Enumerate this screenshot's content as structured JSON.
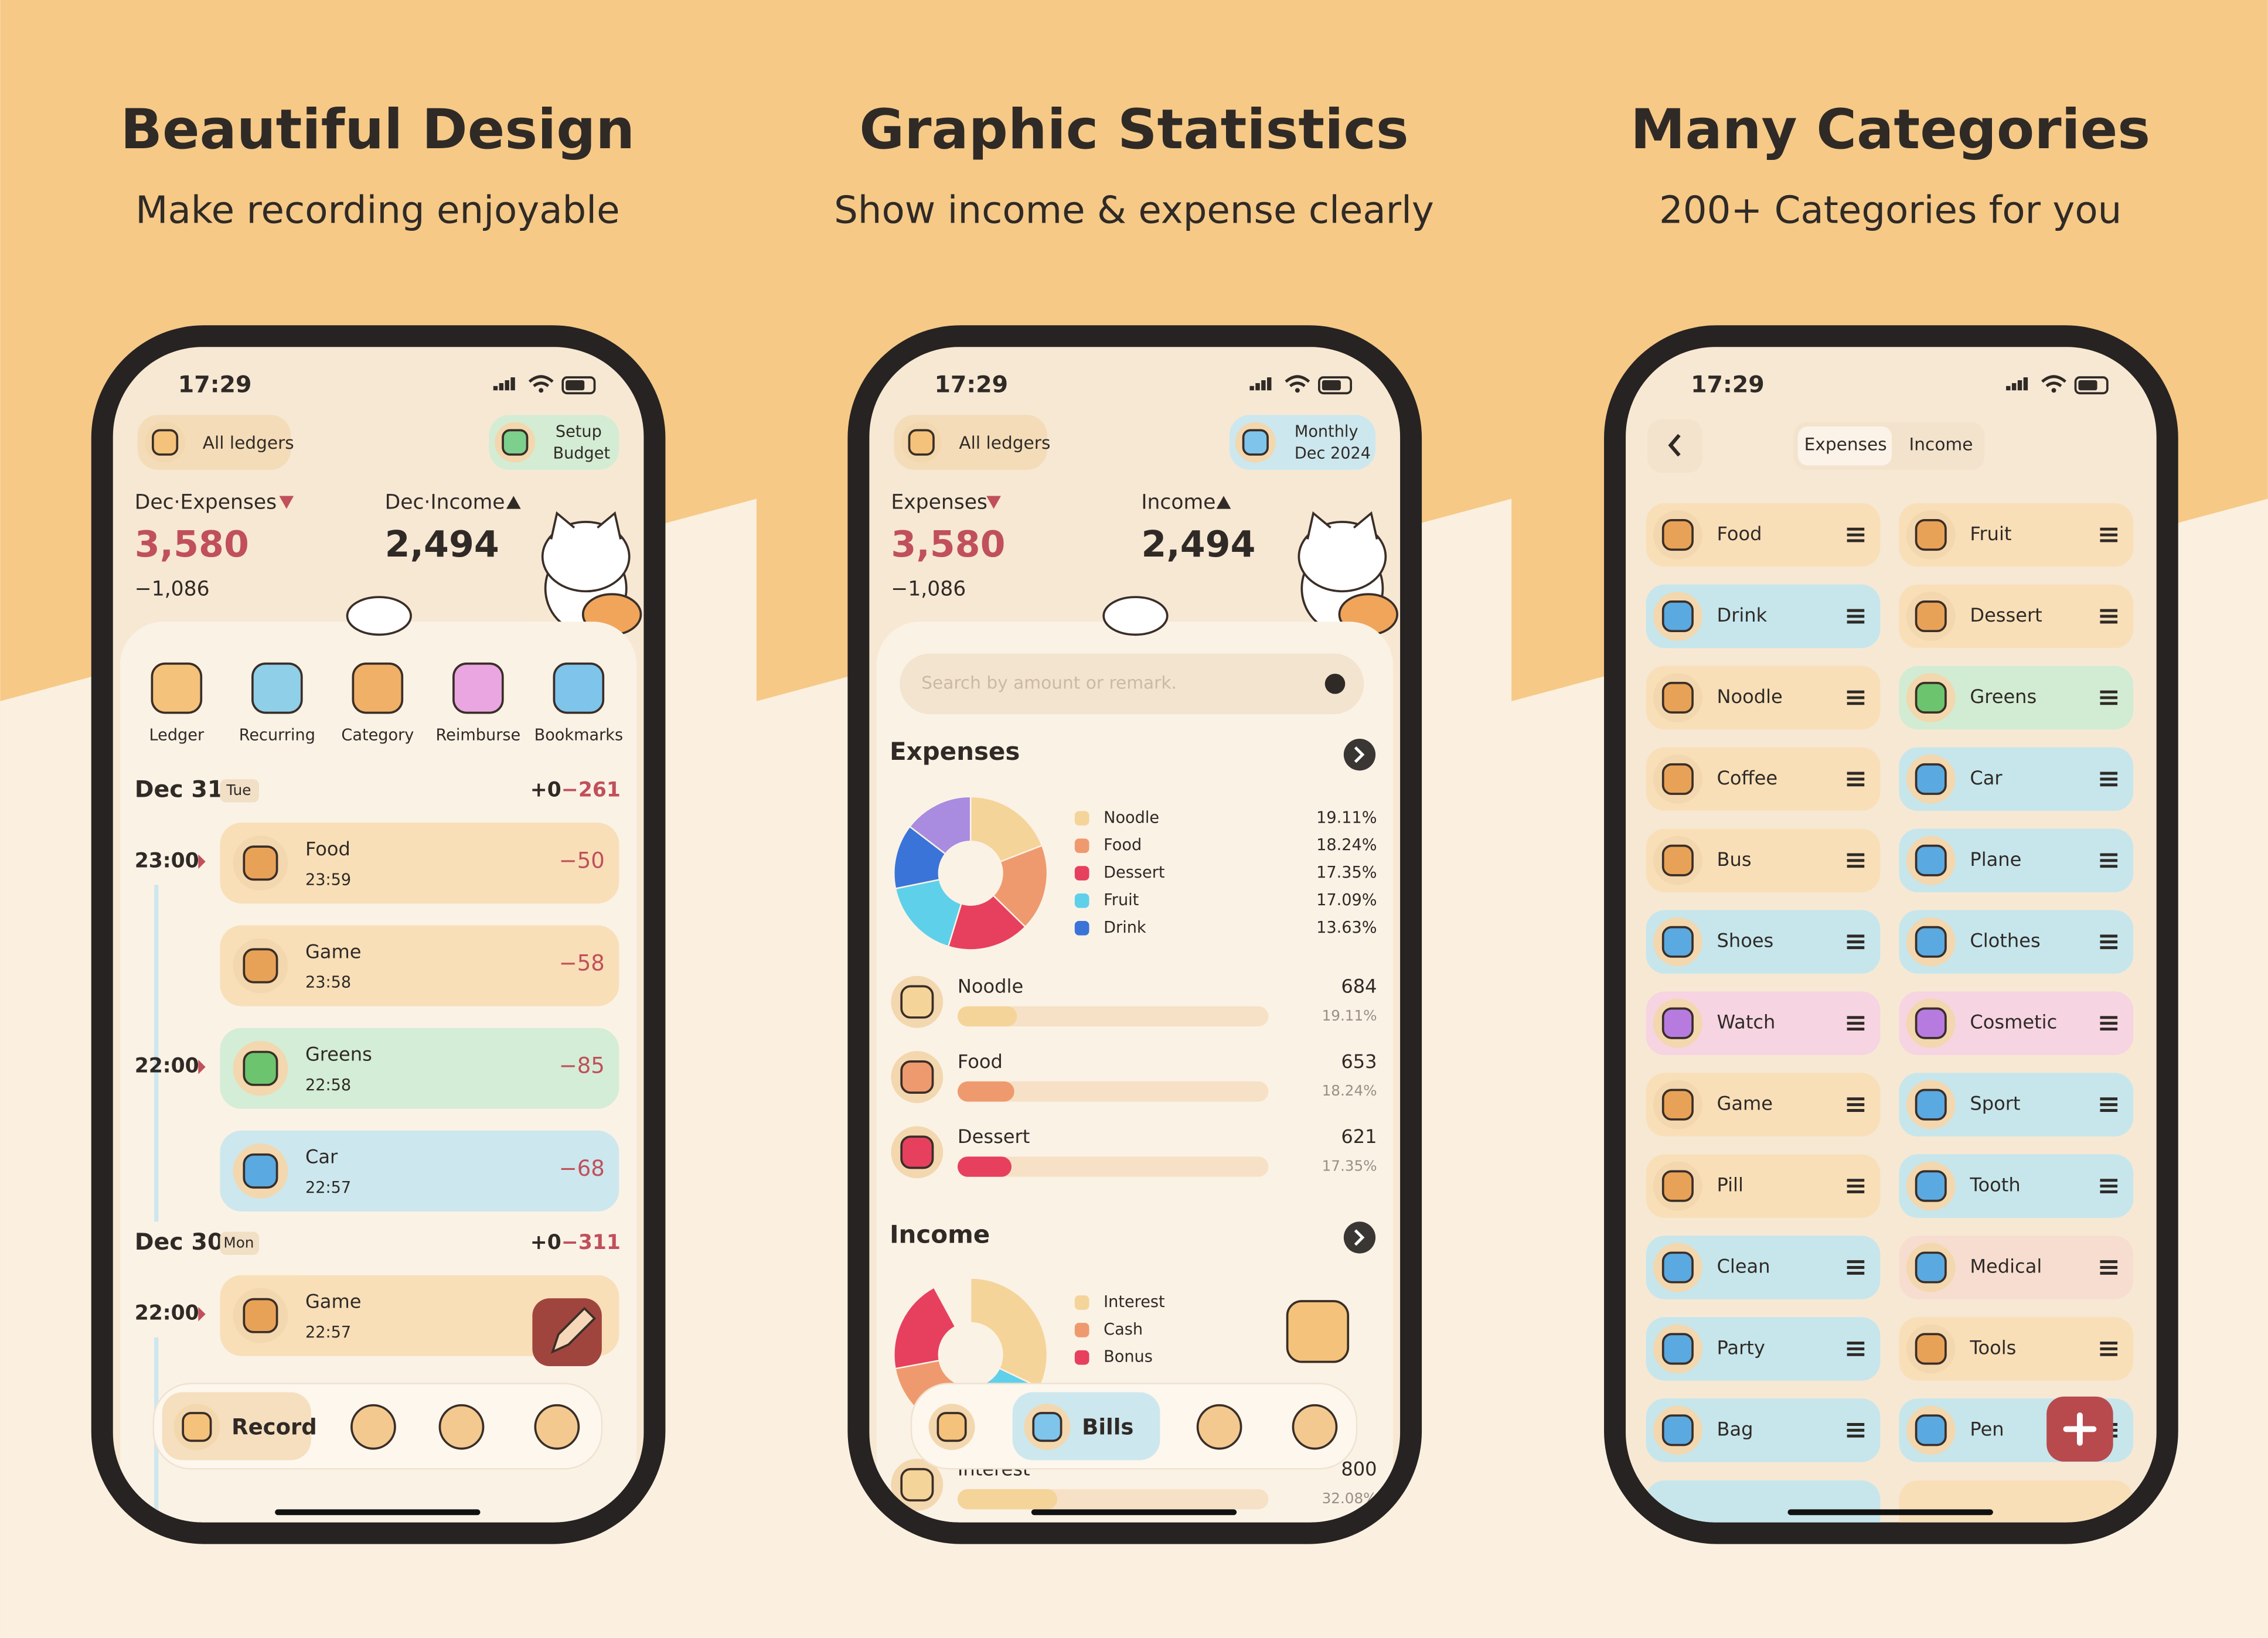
{
  "panels": [
    {
      "title": "Beautiful Design",
      "subtitle": "Make recording enjoyable"
    },
    {
      "title": "Graphic Statistics",
      "subtitle": "Show income & expense clearly"
    },
    {
      "title": "Many Categories",
      "subtitle": "200+ Categories for you"
    }
  ],
  "home": {
    "time": "17:29",
    "ledger": "All ledgers",
    "budget": [
      "Setup",
      "Budget"
    ],
    "expense_label": "Dec·Expenses",
    "expense": "3,580",
    "balance": "−1,086",
    "income_label": "Dec·Income",
    "income": "2,494",
    "shortcuts": [
      {
        "name": "Ledger",
        "color": "#f4c27a"
      },
      {
        "name": "Recurring",
        "color": "#8fcfe8"
      },
      {
        "name": "Category",
        "color": "#f0b067"
      },
      {
        "name": "Reimburse",
        "color": "#e9a6e0"
      },
      {
        "name": "Bookmarks",
        "color": "#7fc4ea"
      }
    ],
    "days": [
      {
        "date": "Dec 31",
        "weekday": "Tue",
        "income": "+0",
        "expense": "−261",
        "entries": [
          {
            "hour": "23:00",
            "name": "Food",
            "time": "23:59",
            "amount": "−50",
            "color": "#f8dfb8"
          },
          {
            "name": "Game",
            "time": "23:58",
            "amount": "−58",
            "color": "#f8dfb8"
          },
          {
            "hour": "22:00",
            "name": "Greens",
            "time": "22:58",
            "amount": "−85",
            "color": "#d4edd6"
          },
          {
            "name": "Car",
            "time": "22:57",
            "amount": "−68",
            "color": "#cde7ee"
          }
        ]
      },
      {
        "date": "Dec 30",
        "weekday": "Mon",
        "income": "+0",
        "expense": "−311",
        "entries": [
          {
            "hour": "22:00",
            "name": "Game",
            "time": "22:57",
            "color": "#f8dfb8"
          }
        ]
      }
    ],
    "nav": "Record"
  },
  "stats": {
    "time": "17:29",
    "ledger": "All ledgers",
    "period": [
      "Monthly",
      "Dec 2024"
    ],
    "expense_label": "Expenses",
    "expense": "3,580",
    "balance": "−1,086",
    "income_label": "Income",
    "income": "2,494",
    "search": "Search by amount or remark.",
    "expenses": {
      "heading": "Expenses",
      "slices": [
        {
          "name": "Noodle",
          "value": 19.11,
          "label": "19.11%",
          "color": "#f5d49a"
        },
        {
          "name": "Food",
          "value": 18.24,
          "label": "18.24%",
          "color": "#ef9a6e"
        },
        {
          "name": "Dessert",
          "value": 17.35,
          "label": "17.35%",
          "color": "#e6405e"
        },
        {
          "name": "Fruit",
          "value": 17.09,
          "label": "17.09%",
          "color": "#5fd0ea"
        },
        {
          "name": "Drink",
          "value": 13.63,
          "label": "13.63%",
          "color": "#3a74d8"
        }
      ],
      "rows": [
        {
          "name": "Noodle",
          "amount": "684",
          "share": 19.11,
          "label": "19.11%",
          "color": "#f5d49a"
        },
        {
          "name": "Food",
          "amount": "653",
          "share": 18.24,
          "label": "18.24%",
          "color": "#ef9a6e"
        },
        {
          "name": "Dessert",
          "amount": "621",
          "share": 17.35,
          "label": "17.35%",
          "color": "#e6405e"
        }
      ]
    },
    "income_section": {
      "heading": "Income",
      "legend": [
        {
          "name": "Interest",
          "color": "#f5d49a"
        },
        {
          "name": "Cash",
          "color": "#ef9a6e"
        },
        {
          "name": "Bonus",
          "color": "#e6405e"
        }
      ],
      "rows": [
        {
          "name": "Interest",
          "amount": "800",
          "share": 32.08,
          "label": "32.08%",
          "color": "#f5d49a"
        }
      ]
    },
    "nav": "Bills"
  },
  "categories": {
    "time": "17:29",
    "tabs": [
      "Expenses",
      "Income"
    ],
    "items": [
      {
        "name": "Food",
        "color": "#f8dfb8"
      },
      {
        "name": "Fruit",
        "color": "#f8dfb8"
      },
      {
        "name": "Drink",
        "color": "#c6e6ec"
      },
      {
        "name": "Dessert",
        "color": "#f8dfb8"
      },
      {
        "name": "Noodle",
        "color": "#f8dfb8"
      },
      {
        "name": "Greens",
        "color": "#d2ecd3"
      },
      {
        "name": "Coffee",
        "color": "#f8dfb8"
      },
      {
        "name": "Car",
        "color": "#c6e6ec"
      },
      {
        "name": "Bus",
        "color": "#f8dfb8"
      },
      {
        "name": "Plane",
        "color": "#c6e6ec"
      },
      {
        "name": "Shoes",
        "color": "#c6e6ec"
      },
      {
        "name": "Clothes",
        "color": "#c6e6ec"
      },
      {
        "name": "Watch",
        "color": "#f6d4e2"
      },
      {
        "name": "Cosmetic",
        "color": "#f6d4e2"
      },
      {
        "name": "Game",
        "color": "#f8dfb8"
      },
      {
        "name": "Sport",
        "color": "#c6e6ec"
      },
      {
        "name": "Pill",
        "color": "#f8dfb8"
      },
      {
        "name": "Tooth",
        "color": "#c6e6ec"
      },
      {
        "name": "Clean",
        "color": "#c6e6ec"
      },
      {
        "name": "Medical",
        "color": "#f7ddd0"
      },
      {
        "name": "Party",
        "color": "#c6e6ec"
      },
      {
        "name": "Tools",
        "color": "#f8dfb8"
      },
      {
        "name": "Bag",
        "color": "#c6e6ec"
      },
      {
        "name": "Pen",
        "color": "#c6e6ec"
      }
    ]
  }
}
